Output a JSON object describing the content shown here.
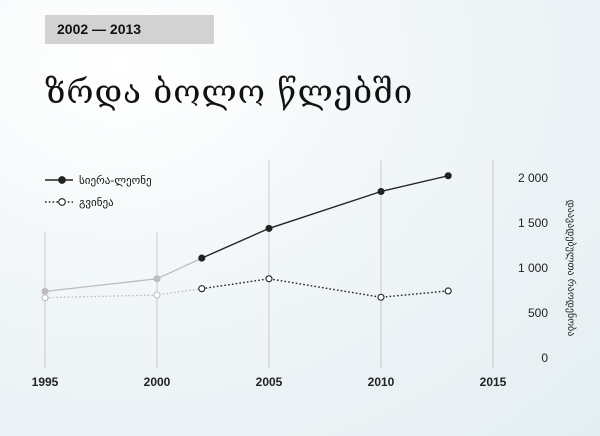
{
  "header": {
    "range_label": "2002 — 2013"
  },
  "chart_data": {
    "type": "line",
    "title": "ზრდა ბოლო წლებში",
    "xlabel": "",
    "ylabel": "დაავადებულთა რაოდენობა",
    "x_ticks": [
      "1995",
      "2000",
      "2005",
      "2010",
      "2015"
    ],
    "y_ticks": [
      "0",
      "500",
      "1 000",
      "1 500",
      "2 000"
    ],
    "xlim": [
      1995,
      2015
    ],
    "ylim": [
      0,
      2000
    ],
    "grid": "vertical",
    "legend": "top-left",
    "series": [
      {
        "name": "სიერა-ლეონე",
        "color": "#222222",
        "style": "solid",
        "marker": "filled",
        "x": [
          1995,
          2000,
          2002,
          2005,
          2010,
          2013
        ],
        "values": [
          740,
          880,
          1110,
          1440,
          1850,
          2025
        ],
        "marked_from_index": 2
      },
      {
        "name": "გვინეა",
        "color": "#222222",
        "style": "dotted",
        "marker": "open",
        "x": [
          1995,
          2000,
          2002,
          2005,
          2010,
          2013
        ],
        "values": [
          670,
          700,
          770,
          880,
          675,
          745
        ],
        "marked_from_index": 2
      }
    ]
  }
}
